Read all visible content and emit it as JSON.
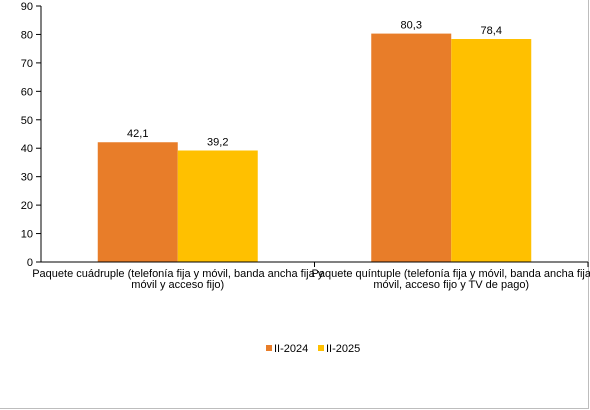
{
  "chart_data": {
    "type": "bar",
    "categories": [
      [
        "Paquete cuádruple (telefonía fija y móvil, banda ancha fija y",
        "móvil y acceso fijo)"
      ],
      [
        "Paquete quíntuple (telefonía fija y móvil, banda ancha fija",
        "móvil, acceso fijo y TV de pago)"
      ]
    ],
    "series": [
      {
        "name": "II-2024",
        "values": [
          42.1,
          80.3
        ],
        "labels": [
          "42,1",
          "80,3"
        ],
        "color": "#E87D29"
      },
      {
        "name": "II-2025",
        "values": [
          39.2,
          78.4
        ],
        "labels": [
          "39,2",
          "78,4"
        ],
        "color": "#FFC000"
      }
    ],
    "ylim": [
      0,
      90
    ],
    "yticks": [
      0,
      10,
      20,
      30,
      40,
      50,
      60,
      70,
      80,
      90
    ],
    "grid": false,
    "legend_position": "bottom",
    "title": "",
    "xlabel": "",
    "ylabel": ""
  }
}
